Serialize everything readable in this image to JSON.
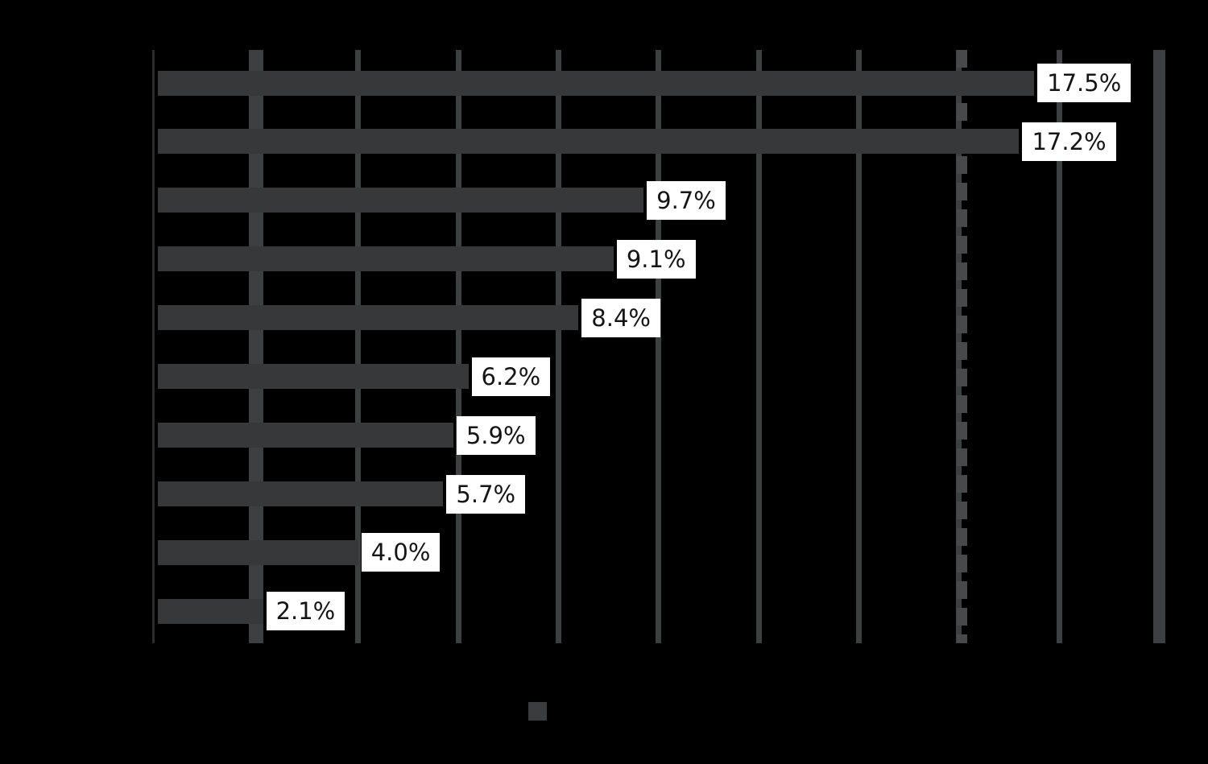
{
  "chart_data": {
    "type": "bar",
    "orientation": "horizontal",
    "values": [
      17.5,
      17.2,
      9.7,
      9.1,
      8.4,
      6.2,
      5.9,
      5.7,
      4.0,
      2.1
    ],
    "data_labels": [
      "17.5%",
      "17.2%",
      "9.7%",
      "9.1%",
      "8.4%",
      "6.2%",
      "5.9%",
      "5.7%",
      "4.0%",
      "2.1%"
    ],
    "xlim": [
      0,
      20
    ],
    "x_unit": "percent",
    "gridlines_percent": [
      2,
      4,
      6,
      8,
      10,
      12,
      14,
      16,
      18,
      20
    ],
    "grid": "on",
    "reference_line": {
      "style": "dashed",
      "percent": 16.1
    },
    "bar_count": 10,
    "visible_text_note": "Only the white data-label boxes are legible; chart title, axis tick labels, category labels and legend text are rendered black on the black background and are not visible."
  },
  "legend": {
    "swatch_visible": true,
    "swatch_color": "#3a3c3d"
  },
  "colors": {
    "background": "#000000",
    "bar": "#363839",
    "gridline": "#3d4041",
    "gridline_dashed": "#47494b",
    "axis_spine": "#2a2c2d",
    "label_box_background": "#ffffff",
    "label_text": "#151515"
  }
}
